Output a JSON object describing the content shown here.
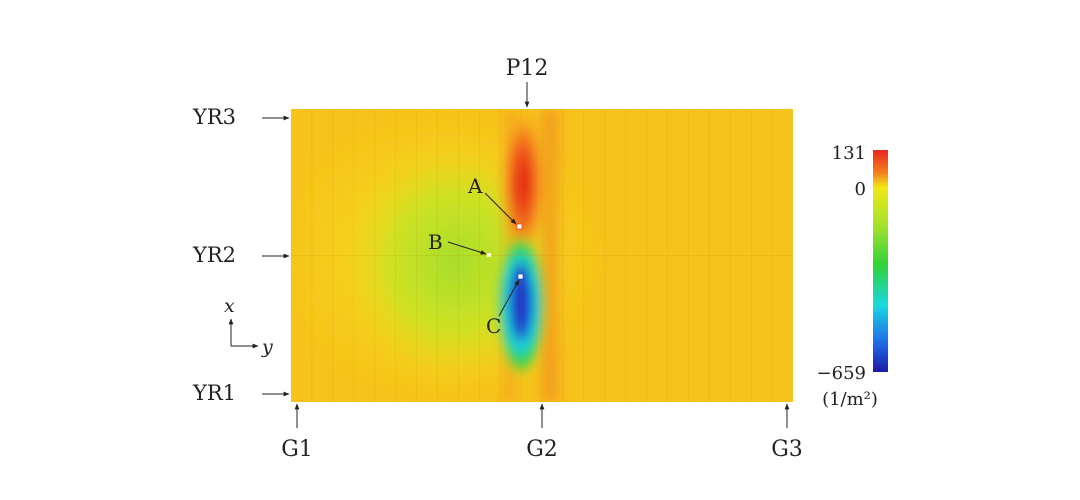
{
  "chart_data": {
    "type": "heatmap",
    "title": "",
    "column_label": "P12",
    "row_labels": [
      "YR3",
      "YR2",
      "YR1"
    ],
    "girder_labels": [
      "G1",
      "G2",
      "G3"
    ],
    "axis_labels": {
      "x": "x",
      "y": "y"
    },
    "colorbar": {
      "max": 131,
      "zero": 0,
      "min": -659,
      "max_label": "131",
      "zero_label": "0",
      "min_label": "−659",
      "unit_label": "(1/m²)"
    },
    "annotations": [
      {
        "label": "A",
        "note": "maximum (red)"
      },
      {
        "label": "B",
        "note": "reference point"
      },
      {
        "label": "C",
        "note": "minimum (blue)"
      }
    ],
    "colors": {
      "background": "#f6c21b",
      "high": "#e8281e",
      "zero": "#f1e816",
      "mid": "#2fd23a",
      "low": "#1b1aa8"
    }
  }
}
